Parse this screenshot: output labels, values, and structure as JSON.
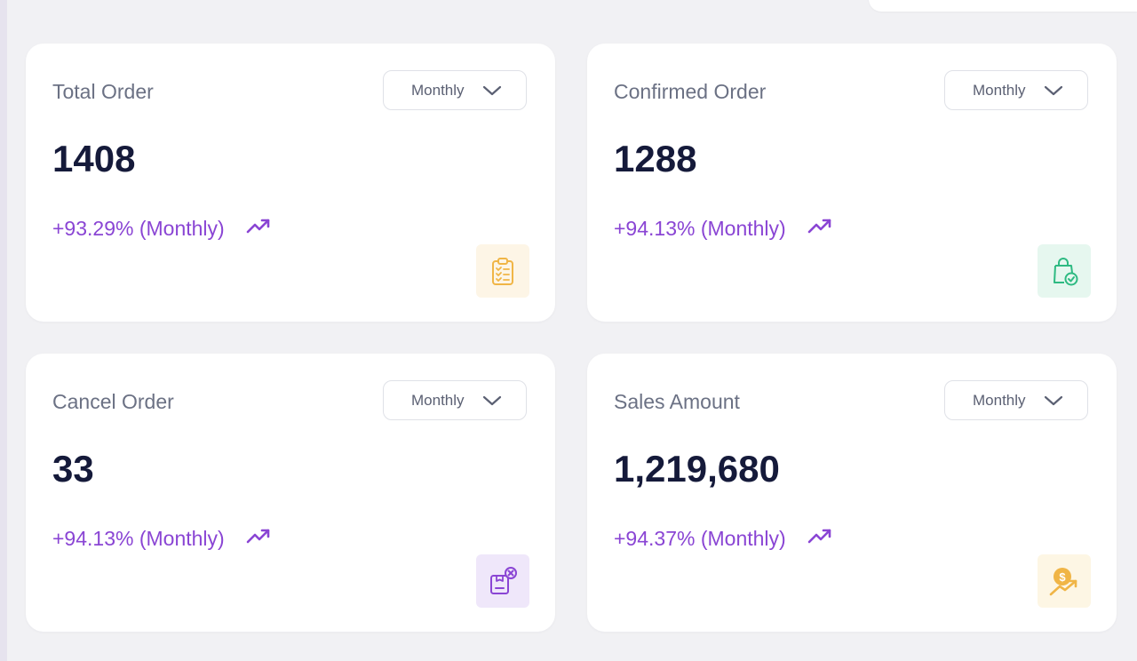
{
  "cards": [
    {
      "title": "Total Order",
      "period": "Monthly",
      "value": "1408",
      "change": "+93.29% (Monthly)",
      "icon": "clipboard-checklist-icon",
      "accent": "#f0b546",
      "badge_bg": "#fdf5e6"
    },
    {
      "title": "Confirmed Order",
      "period": "Monthly",
      "value": "1288",
      "change": "+94.13% (Monthly)",
      "icon": "shopping-bag-check-icon",
      "accent": "#2eba82",
      "badge_bg": "#e6f7ef"
    },
    {
      "title": "Cancel Order",
      "period": "Monthly",
      "value": "33",
      "change": "+94.13% (Monthly)",
      "icon": "box-cancel-icon",
      "accent": "#8a45d4",
      "badge_bg": "#efe7fa"
    },
    {
      "title": "Sales Amount",
      "period": "Monthly",
      "value": "1,219,680",
      "change": "+94.37% (Monthly)",
      "icon": "dollar-growth-icon",
      "accent": "#f0b546",
      "badge_bg": "#fdf6e4"
    }
  ],
  "colors": {
    "change_text": "#8a45d4",
    "value_text": "#151a3a",
    "title_text": "#6b7184"
  }
}
